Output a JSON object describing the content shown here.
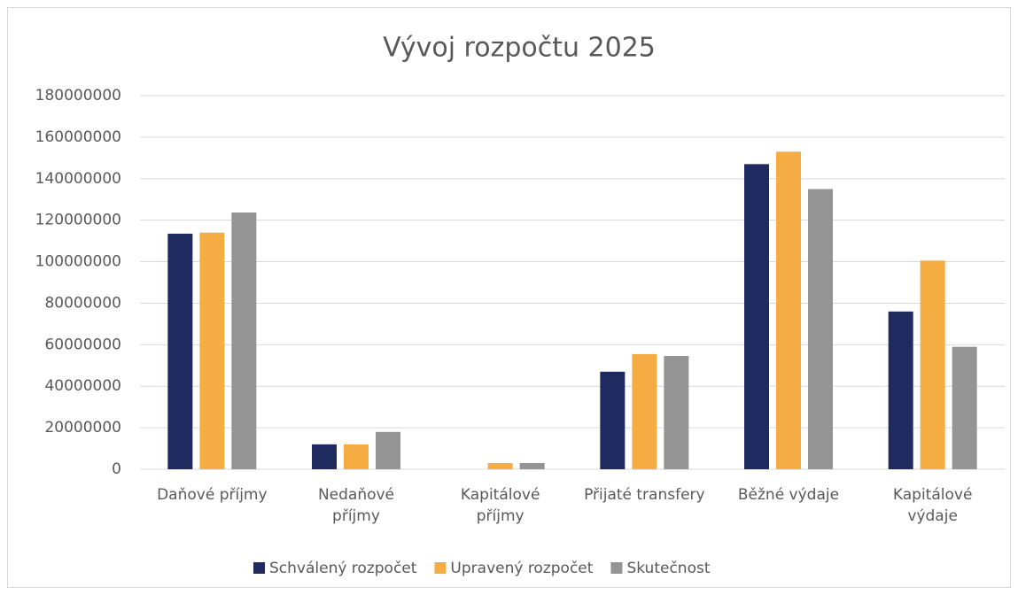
{
  "chart_data": {
    "type": "bar",
    "title": "Vývoj rozpočtu 2025",
    "categories": [
      "Daňové příjmy",
      "Nedaňové\npříjmy",
      "Kapitálové\npříjmy",
      "Přijaté transfery",
      "Běžné výdaje",
      "Kapitálové\nvýdaje"
    ],
    "series": [
      {
        "name": "Schválený rozpočet",
        "color": "#1f2a5e",
        "values": [
          113500000,
          12000000,
          0,
          47000000,
          147000000,
          76000000
        ]
      },
      {
        "name": "Upravený rozpočet",
        "color": "#f5ac42",
        "values": [
          114000000,
          12000000,
          3000000,
          55500000,
          153000000,
          100500000
        ]
      },
      {
        "name": "Skutečnost",
        "color": "#949494",
        "values": [
          123700000,
          18000000,
          3000000,
          54600000,
          135000000,
          59000000
        ]
      }
    ],
    "ylim": [
      0,
      180000000
    ],
    "yticks": [
      0,
      20000000,
      40000000,
      60000000,
      80000000,
      100000000,
      120000000,
      140000000,
      160000000,
      180000000
    ],
    "grid": true,
    "legend": "bottom"
  }
}
